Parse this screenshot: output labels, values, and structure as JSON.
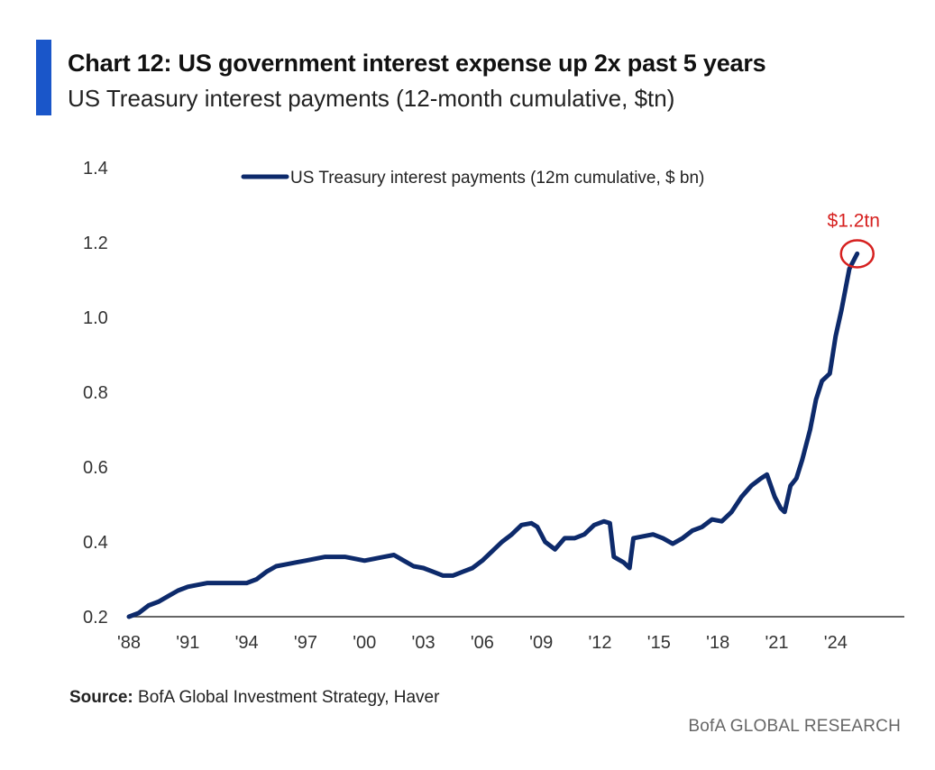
{
  "header": {
    "title": "Chart 12: US government interest expense up 2x past 5 years",
    "subtitle": "US Treasury interest payments (12-month cumulative, $tn)"
  },
  "footer": {
    "source_label": "Source:",
    "source_text": " BofA Global Investment Strategy, Haver",
    "brand": "BofA GLOBAL RESEARCH"
  },
  "colors": {
    "accent": "#1a56c9",
    "line": "#0d2a6b",
    "highlight": "#d6201f",
    "axis": "#333333"
  },
  "chart_data": {
    "type": "line",
    "title": "Chart 12: US government interest expense up 2x past 5 years",
    "subtitle": "US Treasury interest payments (12-month cumulative, $tn)",
    "xlabel": "",
    "ylabel": "",
    "xlim": [
      1988,
      2027.5
    ],
    "ylim": [
      0.2,
      1.4
    ],
    "yticks": [
      0.2,
      0.4,
      0.6,
      0.8,
      1.0,
      1.2,
      1.4
    ],
    "ytick_labels": [
      "0.2",
      "0.4",
      "0.6",
      "0.8",
      "1.0",
      "1.2",
      "1.4"
    ],
    "xticks": [
      1988,
      1991,
      1994,
      1997,
      2000,
      2003,
      2006,
      2009,
      2012,
      2015,
      2018,
      2021,
      2024
    ],
    "xtick_labels": [
      "'88",
      "'91",
      "'94",
      "'97",
      "'00",
      "'03",
      "'06",
      "'09",
      "'12",
      "'15",
      "'18",
      "'21",
      "'24"
    ],
    "grid": false,
    "legend_position": "top-center",
    "series": [
      {
        "name": "US Treasury interest payments (12m cumulative, $ bn)",
        "x": [
          1988.0,
          1988.5,
          1989.0,
          1989.5,
          1990.0,
          1990.5,
          1991.0,
          1991.5,
          1992.0,
          1992.5,
          1993.0,
          1993.5,
          1994.0,
          1994.5,
          1995.0,
          1995.5,
          1996.0,
          1996.5,
          1997.0,
          1997.5,
          1998.0,
          1998.5,
          1999.0,
          1999.5,
          2000.0,
          2000.5,
          2001.0,
          2001.5,
          2002.0,
          2002.5,
          2003.0,
          2003.5,
          2004.0,
          2004.5,
          2005.0,
          2005.5,
          2006.0,
          2006.5,
          2007.0,
          2007.5,
          2008.0,
          2008.5,
          2008.8,
          2009.2,
          2009.7,
          2010.2,
          2010.7,
          2011.2,
          2011.7,
          2012.2,
          2012.5,
          2012.7,
          2013.2,
          2013.5,
          2013.7,
          2014.2,
          2014.7,
          2015.2,
          2015.7,
          2016.2,
          2016.7,
          2017.2,
          2017.7,
          2018.2,
          2018.7,
          2019.2,
          2019.7,
          2020.2,
          2020.5,
          2020.9,
          2021.2,
          2021.4,
          2021.7,
          2022.0,
          2022.3,
          2022.7,
          2023.0,
          2023.3,
          2023.7,
          2024.0,
          2024.3,
          2024.7,
          2025.1
        ],
        "values": [
          0.2,
          0.21,
          0.23,
          0.24,
          0.255,
          0.27,
          0.28,
          0.285,
          0.29,
          0.29,
          0.29,
          0.29,
          0.29,
          0.3,
          0.32,
          0.335,
          0.34,
          0.345,
          0.35,
          0.355,
          0.36,
          0.36,
          0.36,
          0.355,
          0.35,
          0.355,
          0.36,
          0.365,
          0.35,
          0.335,
          0.33,
          0.32,
          0.31,
          0.31,
          0.32,
          0.33,
          0.35,
          0.375,
          0.4,
          0.42,
          0.445,
          0.45,
          0.44,
          0.4,
          0.38,
          0.41,
          0.41,
          0.42,
          0.445,
          0.455,
          0.45,
          0.36,
          0.345,
          0.33,
          0.41,
          0.415,
          0.42,
          0.41,
          0.395,
          0.41,
          0.43,
          0.44,
          0.46,
          0.455,
          0.48,
          0.52,
          0.55,
          0.57,
          0.58,
          0.52,
          0.49,
          0.48,
          0.55,
          0.57,
          0.62,
          0.7,
          0.78,
          0.83,
          0.85,
          0.95,
          1.02,
          1.13,
          1.17
        ]
      }
    ],
    "annotations": [
      {
        "text": "$1.2tn",
        "x": 2025.1,
        "y": 1.17,
        "marker": "circle"
      }
    ]
  }
}
